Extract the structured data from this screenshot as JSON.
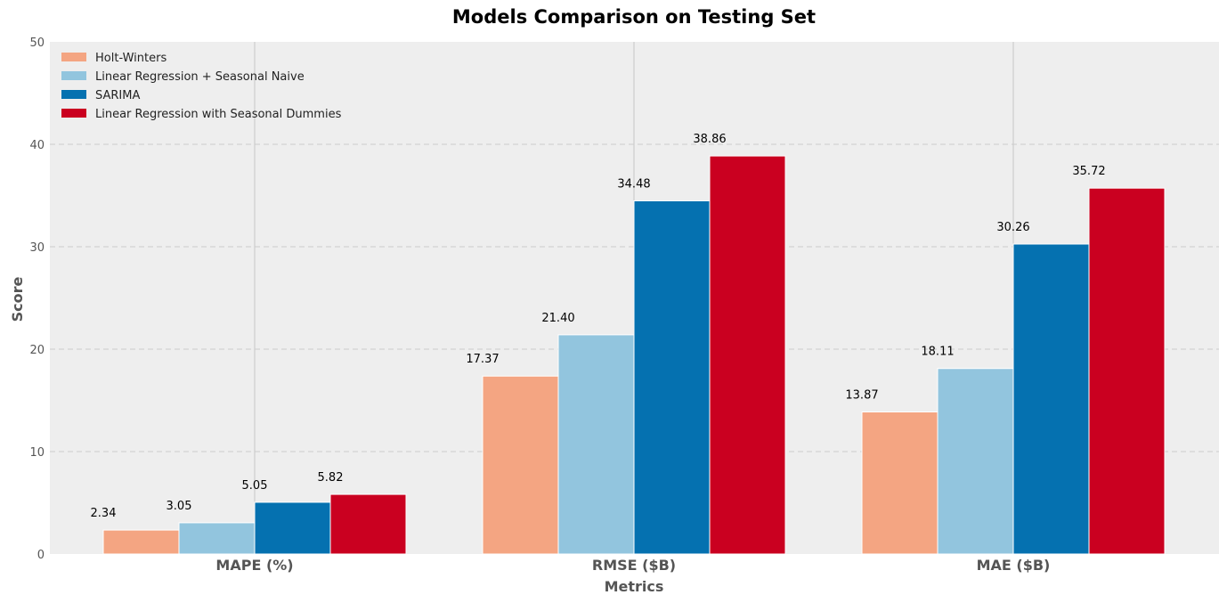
{
  "chart_data": {
    "type": "bar",
    "title": "Models Comparison on Testing Set",
    "xlabel": "Metrics",
    "ylabel": "Score",
    "categories": [
      "MAPE (%)",
      "RMSE ($B)",
      "MAE ($B)"
    ],
    "ylim": [
      0,
      50
    ],
    "yticks": [
      0,
      10,
      20,
      30,
      40,
      50
    ],
    "grid": true,
    "legend_position": "top-left",
    "series": [
      {
        "name": "Holt-Winters",
        "color": "#f4a582",
        "values": [
          2.34,
          17.37,
          13.87
        ],
        "labels": [
          "2.34",
          "17.37",
          "13.87"
        ]
      },
      {
        "name": "Linear Regression + Seasonal Naive",
        "color": "#92c5de",
        "values": [
          3.05,
          21.4,
          18.11
        ],
        "labels": [
          "3.05",
          "21.40",
          "18.11"
        ]
      },
      {
        "name": "SARIMA",
        "color": "#0571b0",
        "values": [
          5.05,
          34.48,
          30.26
        ],
        "labels": [
          "5.05",
          "34.48",
          "30.26"
        ]
      },
      {
        "name": "Linear Regression with Seasonal Dummies",
        "color": "#ca0020",
        "values": [
          5.82,
          38.86,
          35.72
        ],
        "labels": [
          "5.82",
          "38.86",
          "35.72"
        ]
      }
    ]
  }
}
